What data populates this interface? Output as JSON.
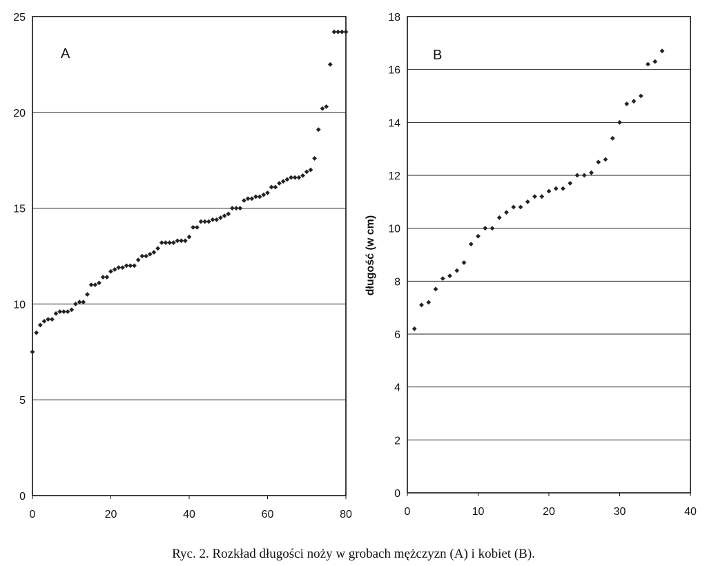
{
  "caption": "Ryc. 2. Rozkład długości noży w grobach mężczyzn (A) i kobiet (B).",
  "chart_data": [
    {
      "type": "scatter",
      "panel_label": "A",
      "xlabel": "",
      "ylabel": "",
      "xlim": [
        0,
        80
      ],
      "ylim": [
        0,
        25
      ],
      "xticks": [
        0,
        20,
        40,
        60,
        80
      ],
      "yticks": [
        0,
        5,
        10,
        15,
        20,
        25
      ],
      "grid": "horizontal",
      "series": [
        {
          "x": [
            0,
            1,
            2,
            3,
            4,
            5,
            6,
            7,
            8,
            9,
            10,
            11,
            12,
            13,
            14,
            15,
            16,
            17,
            18,
            19,
            20,
            21,
            22,
            23,
            24,
            25,
            26,
            27,
            28,
            29,
            30,
            31,
            32,
            33,
            34,
            35,
            36,
            37,
            38,
            39,
            40,
            41,
            42,
            43,
            44,
            45,
            46,
            47,
            48,
            49,
            50,
            51,
            52,
            53,
            54,
            55,
            56,
            57,
            58,
            59,
            60,
            61,
            62,
            63,
            64,
            65,
            66,
            67,
            68,
            69,
            70,
            71,
            72,
            73,
            74,
            75,
            76,
            77,
            78,
            79,
            80
          ],
          "y": [
            7.5,
            8.5,
            8.9,
            9.1,
            9.2,
            9.2,
            9.5,
            9.6,
            9.6,
            9.6,
            9.7,
            10.0,
            10.1,
            10.1,
            10.5,
            11.0,
            11.0,
            11.1,
            11.4,
            11.4,
            11.7,
            11.8,
            11.9,
            11.9,
            12.0,
            12.0,
            12.0,
            12.3,
            12.5,
            12.5,
            12.6,
            12.7,
            12.9,
            13.2,
            13.2,
            13.2,
            13.2,
            13.3,
            13.3,
            13.3,
            13.5,
            14.0,
            14.0,
            14.3,
            14.3,
            14.3,
            14.4,
            14.4,
            14.5,
            14.6,
            14.7,
            15.0,
            15.0,
            15.0,
            15.4,
            15.5,
            15.5,
            15.6,
            15.6,
            15.7,
            15.8,
            16.1,
            16.1,
            16.3,
            16.4,
            16.5,
            16.6,
            16.6,
            16.6,
            16.7,
            16.9,
            17.0,
            17.6,
            19.1,
            20.2,
            20.3,
            22.5,
            24.2,
            24.2,
            24.2,
            24.2
          ]
        }
      ]
    },
    {
      "type": "scatter",
      "panel_label": "B",
      "xlabel": "",
      "ylabel": "długość (w cm)",
      "xlim": [
        0,
        40
      ],
      "ylim": [
        0,
        18
      ],
      "xticks": [
        0,
        10,
        20,
        30,
        40
      ],
      "yticks": [
        0,
        2,
        4,
        6,
        8,
        10,
        12,
        14,
        16,
        18
      ],
      "grid": "horizontal",
      "series": [
        {
          "x": [
            1,
            2,
            3,
            4,
            5,
            6,
            7,
            8,
            9,
            10,
            11,
            12,
            13,
            14,
            15,
            16,
            17,
            18,
            19,
            20,
            21,
            22,
            23,
            24,
            25,
            26,
            27,
            28,
            29,
            30,
            31,
            32,
            33,
            34,
            35,
            36
          ],
          "y": [
            6.2,
            7.1,
            7.2,
            7.7,
            8.1,
            8.2,
            8.4,
            8.7,
            9.4,
            9.7,
            10.0,
            10.0,
            10.4,
            10.6,
            10.8,
            10.8,
            11.0,
            11.2,
            11.2,
            11.4,
            11.5,
            11.5,
            11.7,
            12.0,
            12.0,
            12.1,
            12.5,
            12.6,
            13.4,
            14.0,
            14.7,
            14.8,
            15.0,
            16.2,
            16.3,
            16.7
          ]
        }
      ]
    }
  ]
}
